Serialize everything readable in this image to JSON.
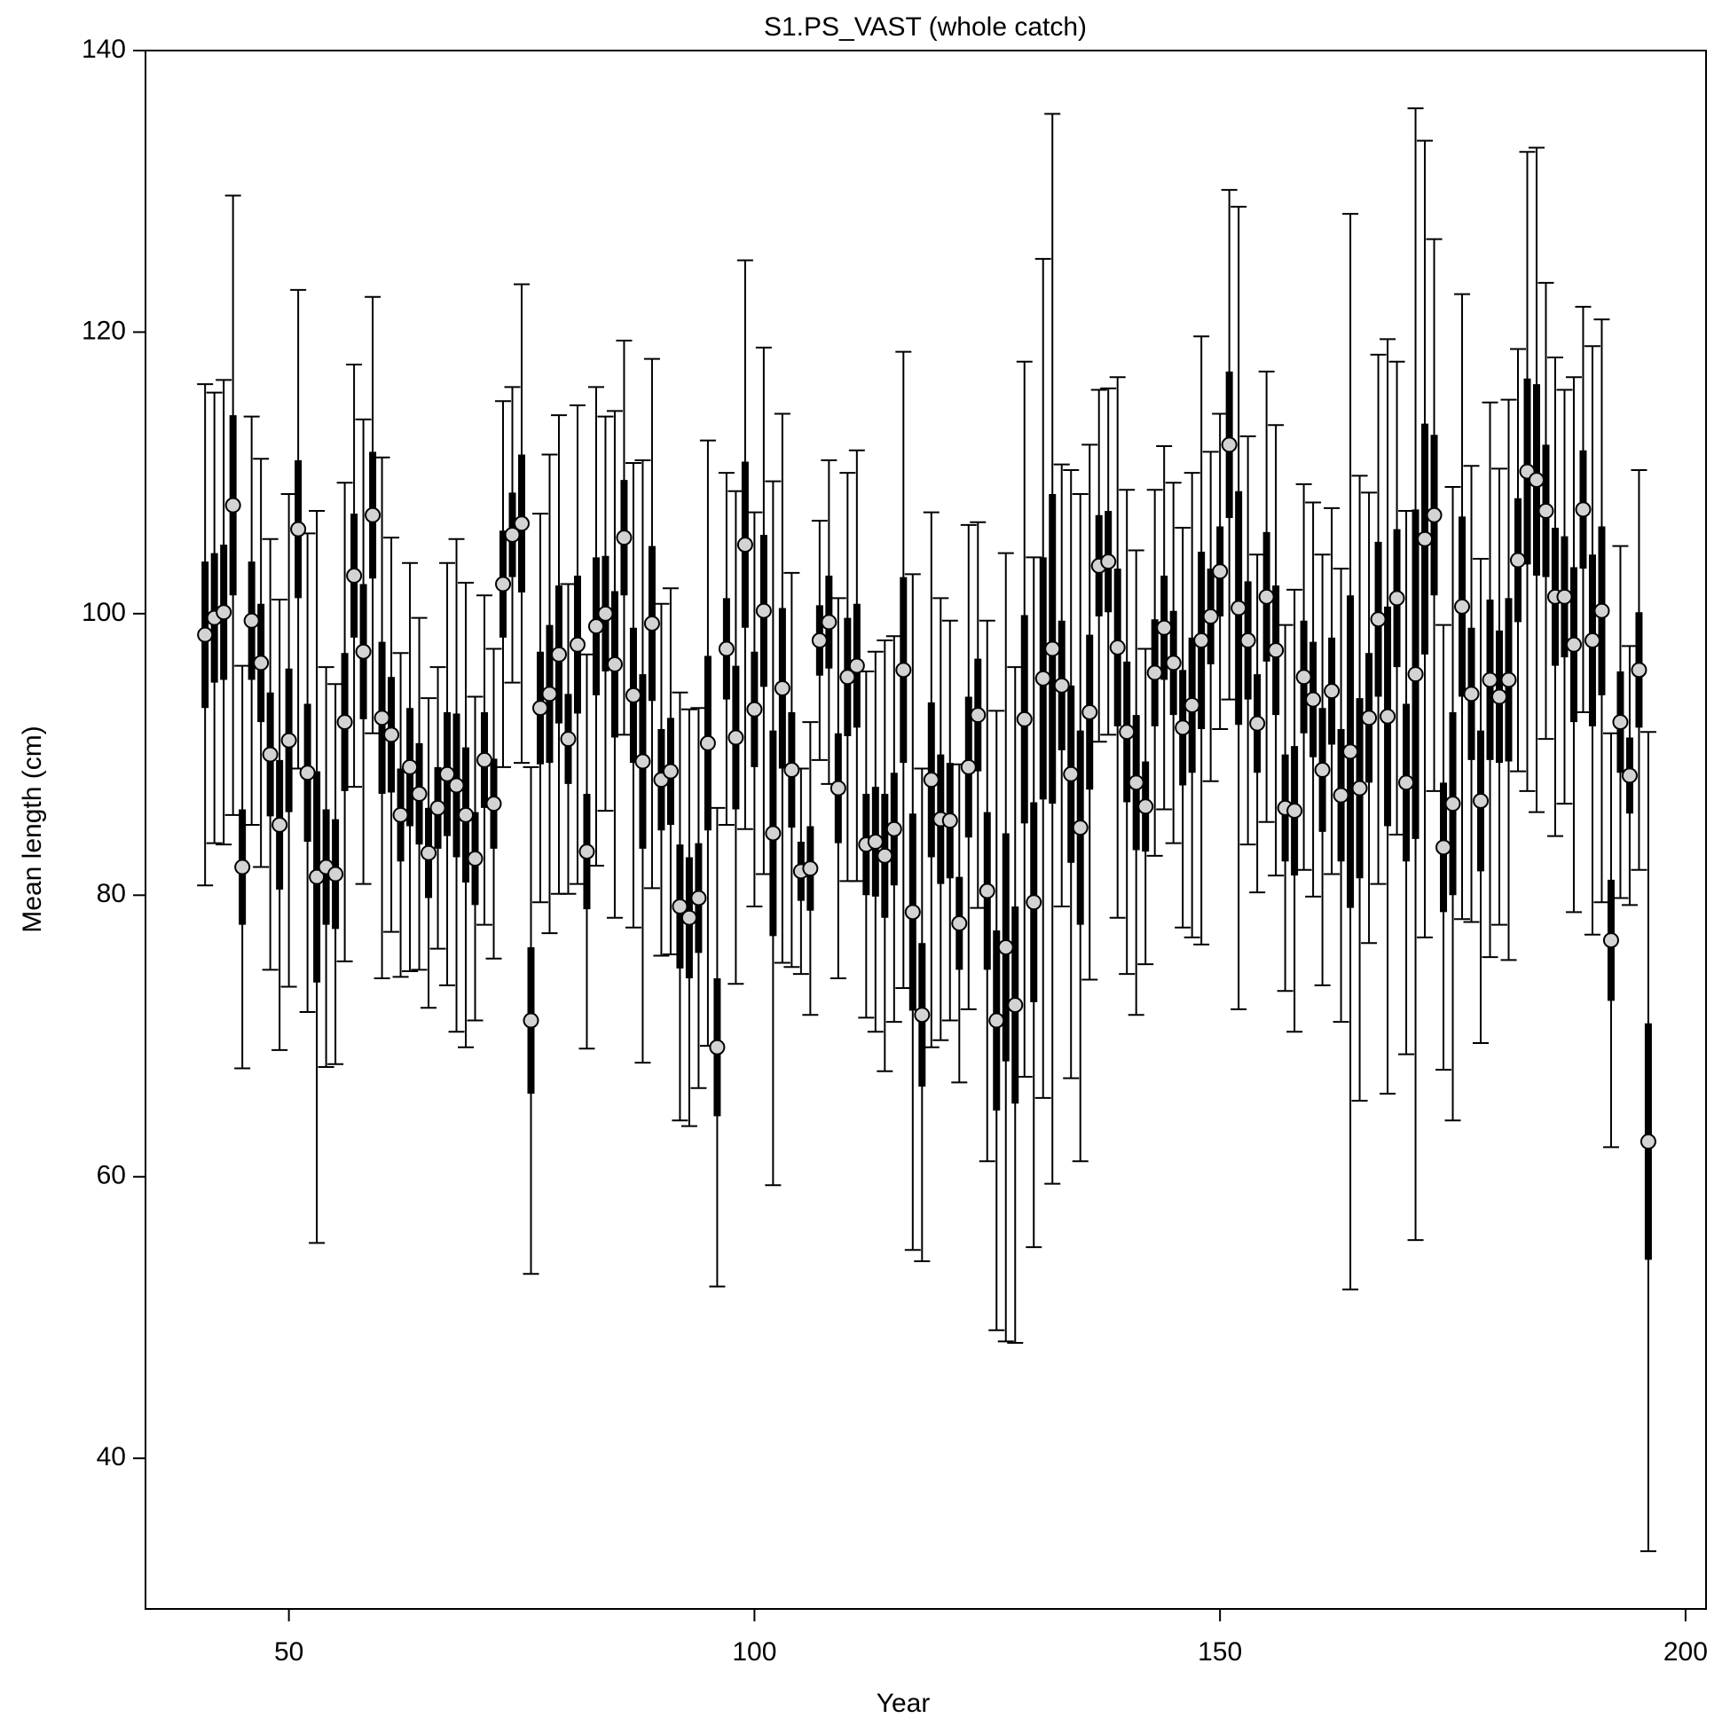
{
  "chart_data": {
    "type": "errorbar",
    "title": "S1.PS_VAST (whole catch)",
    "x_label": "Year",
    "y_label": "Mean length (cm)",
    "x": [
      41,
      42,
      43,
      44,
      45,
      46,
      47,
      48,
      49,
      50,
      51,
      52,
      53,
      54,
      55,
      56,
      57,
      58,
      59,
      60,
      61,
      62,
      63,
      64,
      65,
      66,
      67,
      68,
      69,
      70,
      71,
      72,
      73,
      74,
      75,
      76,
      77,
      78,
      79,
      80,
      81,
      82,
      83,
      84,
      85,
      86,
      87,
      88,
      89,
      90,
      91,
      92,
      93,
      94,
      95,
      96,
      97,
      98,
      99,
      100,
      101,
      102,
      103,
      104,
      105,
      106,
      107,
      108,
      109,
      110,
      111,
      112,
      113,
      114,
      115,
      116,
      117,
      118,
      119,
      120,
      121,
      122,
      123,
      124,
      125,
      126,
      127,
      128,
      129,
      130,
      131,
      132,
      133,
      134,
      135,
      136,
      137,
      138,
      139,
      140,
      141,
      142,
      143,
      144,
      145,
      146,
      147,
      148,
      149,
      150,
      151,
      152,
      153,
      154,
      155,
      156,
      157,
      158,
      159,
      160,
      161,
      162,
      163,
      164,
      165,
      166,
      167,
      168,
      169,
      170,
      171,
      172,
      173,
      174,
      175,
      176,
      177,
      178,
      179,
      180,
      181,
      182,
      183,
      184,
      185,
      186,
      187,
      188,
      189,
      190,
      191,
      192,
      193,
      194,
      195,
      196
    ],
    "values": [
      98.5,
      99.7,
      100.1,
      107.7,
      82,
      99.5,
      96.5,
      90,
      85,
      91,
      106,
      88.7,
      81.3,
      82,
      81.5,
      92.3,
      102.7,
      97.3,
      107,
      92.6,
      91.4,
      85.7,
      89.1,
      87.2,
      83,
      86.2,
      88.6,
      87.8,
      85.7,
      82.6,
      89.6,
      86.5,
      102.1,
      105.6,
      106.4,
      71.1,
      93.3,
      94.3,
      97.1,
      91.1,
      97.8,
      83.1,
      99.1,
      100,
      96.4,
      105.4,
      94.2,
      89.5,
      99.3,
      88.2,
      88.8,
      79.2,
      78.4,
      79.8,
      90.8,
      69.2,
      97.5,
      91.2,
      104.9,
      93.2,
      100.2,
      84.4,
      94.7,
      88.9,
      81.7,
      81.9,
      98.1,
      99.4,
      87.6,
      95.5,
      96.3,
      83.6,
      83.8,
      82.8,
      84.7,
      96,
      78.8,
      71.5,
      88.2,
      85.4,
      85.3,
      78,
      89.1,
      92.8,
      80.3,
      71.1,
      76.3,
      72.2,
      92.5,
      79.5,
      95.4,
      97.5,
      94.9,
      88.6,
      84.8,
      93,
      103.4,
      103.7,
      97.6,
      91.6,
      88,
      86.3,
      95.8,
      99,
      96.5,
      91.9,
      93.5,
      98.1,
      99.8,
      103,
      112,
      100.4,
      98.1,
      92.2,
      101.2,
      97.4,
      86.2,
      86,
      95.5,
      93.9,
      88.9,
      94.5,
      87.1,
      90.2,
      87.6,
      92.6,
      99.6,
      92.7,
      101.1,
      88,
      95.7,
      105.3,
      107,
      83.4,
      86.5,
      100.5,
      94.3,
      86.7,
      95.3,
      94.1,
      95.3,
      103.8,
      110.1,
      109.5,
      107.3,
      101.2,
      101.2,
      97.8,
      107.4,
      98.1,
      100.2,
      76.8,
      92.3,
      88.5,
      96,
      62.5
    ],
    "errors": [
      17.8,
      16,
      16.5,
      22,
      14.3,
      14.5,
      14.5,
      15.3,
      16,
      17.5,
      17,
      17,
      26,
      14.2,
      13.5,
      17,
      15,
      16.5,
      15.5,
      18.5,
      14,
      11.5,
      14.5,
      12.5,
      11,
      10,
      15,
      17.5,
      16.5,
      11.5,
      11.7,
      11,
      13,
      10.5,
      17,
      18,
      13.8,
      17,
      17,
      11,
      17,
      14,
      17,
      14,
      18,
      14,
      16.5,
      21.4,
      18.8,
      12.5,
      13,
      15.2,
      14.8,
      13.5,
      21.5,
      17,
      12.5,
      17.5,
      20.2,
      14,
      18.7,
      25,
      19.5,
      14,
      7.3,
      10.4,
      8.5,
      11.5,
      13.5,
      14.5,
      15.3,
      12.3,
      13.5,
      15.3,
      13.7,
      22.6,
      24,
      17.5,
      19,
      15.7,
      14.2,
      11.3,
      17.2,
      13.7,
      19.2,
      22,
      28,
      24,
      25.4,
      24.5,
      29.8,
      38,
      15.7,
      21.6,
      23.7,
      19,
      12.5,
      12.3,
      19.2,
      17.2,
      16.5,
      11.2,
      13,
      12.9,
      12.8,
      14.2,
      16.5,
      21.6,
      11.7,
      11.2,
      18.1,
      28.5,
      14.5,
      12,
      16,
      16,
      13,
      15.7,
      13.7,
      14,
      15.3,
      13,
      16.1,
      38.2,
      22.2,
      16,
      18.8,
      26.8,
      16.8,
      19.3,
      40.2,
      28.3,
      19.6,
      15.8,
      22.5,
      22.2,
      16.2,
      17.2,
      19.7,
      16.2,
      19.9,
      15,
      22.7,
      23.6,
      16.2,
      17,
      14.7,
      19,
      14.4,
      20.9,
      20.7,
      14.7,
      12.5,
      9.2,
      14.2,
      29.1
    ],
    "inner_errors": [
      5.2,
      4.6,
      4.8,
      6.4,
      4.1,
      4.2,
      4.2,
      4.4,
      4.6,
      5.1,
      4.9,
      4.9,
      7.5,
      4.1,
      3.9,
      4.9,
      4.4,
      4.8,
      4.5,
      5.4,
      4.1,
      3.3,
      4.2,
      3.6,
      3.2,
      2.9,
      4.4,
      5.1,
      4.8,
      3.3,
      3.4,
      3.2,
      3.8,
      3.0,
      4.9,
      5.2,
      4.0,
      4.9,
      4.9,
      3.2,
      4.9,
      4.1,
      4.9,
      4.1,
      5.2,
      4.1,
      4.8,
      6.2,
      5.5,
      3.6,
      3.8,
      4.4,
      4.3,
      3.9,
      6.2,
      4.9,
      3.6,
      5.1,
      5.9,
      4.1,
      5.4,
      7.3,
      5.7,
      4.1,
      2.1,
      3.0,
      2.5,
      3.3,
      3.9,
      4.2,
      4.4,
      3.6,
      3.9,
      4.4,
      4.0,
      6.6,
      7.0,
      5.1,
      5.5,
      4.6,
      4.1,
      3.3,
      5.0,
      4.0,
      5.6,
      6.4,
      8.1,
      7.0,
      7.4,
      7.1,
      8.6,
      11.0,
      4.6,
      6.3,
      6.9,
      5.5,
      3.6,
      3.6,
      5.6,
      5.0,
      4.8,
      3.2,
      3.8,
      3.7,
      3.7,
      4.1,
      4.8,
      6.3,
      3.4,
      3.2,
      5.2,
      8.3,
      4.2,
      3.5,
      4.6,
      4.6,
      3.8,
      4.6,
      4.0,
      4.1,
      4.4,
      3.8,
      4.7,
      11.1,
      6.4,
      4.6,
      5.5,
      7.8,
      4.9,
      5.6,
      11.7,
      8.2,
      5.7,
      4.6,
      6.5,
      6.4,
      4.7,
      5.0,
      5.7,
      4.7,
      5.8,
      4.4,
      6.6,
      6.8,
      4.7,
      4.9,
      4.3,
      5.5,
      4.2,
      6.1,
      6.0,
      4.3,
      3.6,
      2.7,
      4.1,
      8.4
    ],
    "marker_color": "#d3d3d3",
    "xlim": [
      34.6,
      202.2
    ],
    "ylim": [
      29.3,
      140
    ],
    "xticks": [
      50,
      100,
      150,
      200
    ],
    "yticks": [
      40,
      60,
      80,
      100,
      120,
      140
    ]
  }
}
